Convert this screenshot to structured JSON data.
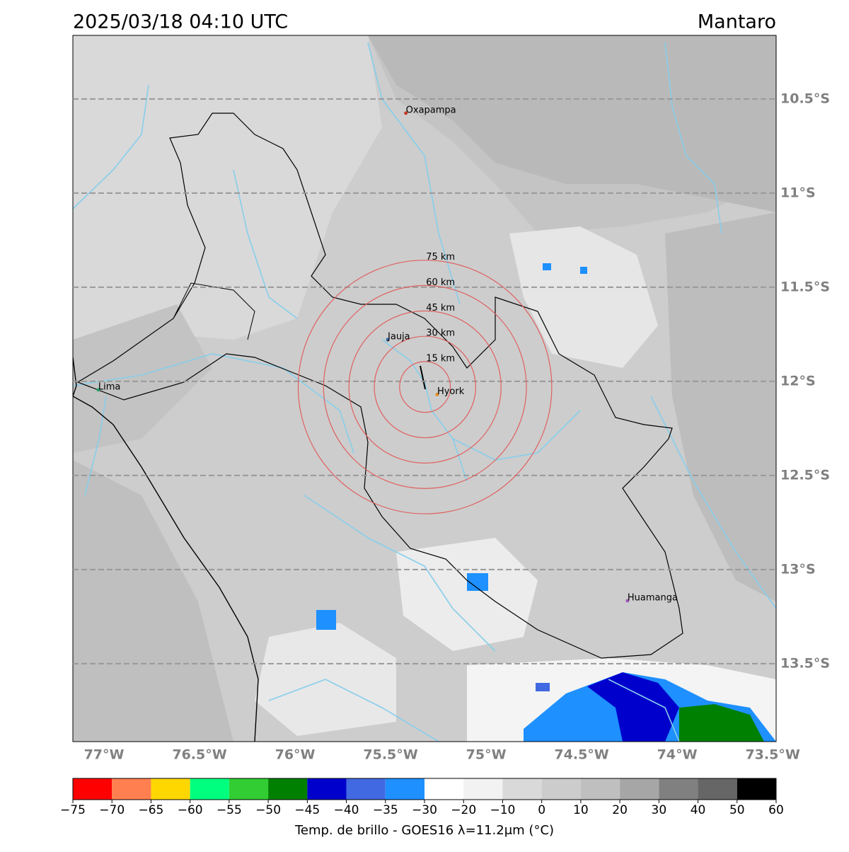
{
  "header": {
    "title": "2025/03/18 04:10 UTC",
    "region": "Mantaro"
  },
  "map": {
    "xlim": [
      -77.163,
      -73.482
    ],
    "ylim": [
      -10.162,
      -13.914
    ],
    "xticks": [
      {
        "value": -77,
        "label": "77°W"
      },
      {
        "value": -76.5,
        "label": "76.5°W"
      },
      {
        "value": -76,
        "label": "76°W"
      },
      {
        "value": -75.5,
        "label": "75.5°W"
      },
      {
        "value": -75,
        "label": "75°W"
      },
      {
        "value": -74.5,
        "label": "74.5°W"
      },
      {
        "value": -74,
        "label": "74°W"
      },
      {
        "value": -73.5,
        "label": "73.5°W"
      }
    ],
    "yticks": [
      {
        "value": -10.5,
        "label": "10.5°S"
      },
      {
        "value": -11,
        "label": "11°S"
      },
      {
        "value": -11.5,
        "label": "11.5°S"
      },
      {
        "value": -12,
        "label": "12°S"
      },
      {
        "value": -12.5,
        "label": "12.5°S"
      },
      {
        "value": -13,
        "label": "13°S"
      },
      {
        "value": -13.5,
        "label": "13.5°S"
      }
    ],
    "grid": true,
    "places": [
      {
        "name": "Oxapampa",
        "lon": -75.42,
        "lat": -10.575,
        "color": "#c0392b"
      },
      {
        "name": "Jauja",
        "lon": -75.515,
        "lat": -11.778,
        "color": "#3a6ea5"
      },
      {
        "name": "Lima",
        "lon": -77.03,
        "lat": -12.045,
        "color": "#2e9e6e"
      },
      {
        "name": "Hyork",
        "lon": -75.256,
        "lat": -12.07,
        "color": "#e08a2a"
      },
      {
        "name": "Huamanga",
        "lon": -74.26,
        "lat": -13.166,
        "color": "#9b59b6"
      }
    ],
    "rings": {
      "center": [
        -75.32,
        -12.03
      ],
      "color": "#e06060",
      "radii": [
        {
          "value": 15,
          "label": "15 km"
        },
        {
          "value": 30,
          "label": "30 km"
        },
        {
          "value": 45,
          "label": "45 km"
        },
        {
          "value": 60,
          "label": "60 km"
        },
        {
          "value": 75,
          "label": "75 km"
        }
      ]
    }
  },
  "colorbar": {
    "label": "Temp. de brillo - GOES16 λ=11.2μm (°C)",
    "ticks": [
      {
        "value": -75,
        "label": "−75"
      },
      {
        "value": -70,
        "label": "−70"
      },
      {
        "value": -65,
        "label": "−65"
      },
      {
        "value": -60,
        "label": "−60"
      },
      {
        "value": -55,
        "label": "−55"
      },
      {
        "value": -50,
        "label": "−50"
      },
      {
        "value": -45,
        "label": "−45"
      },
      {
        "value": -40,
        "label": "−40"
      },
      {
        "value": -35,
        "label": "−35"
      },
      {
        "value": -30,
        "label": "−30"
      },
      {
        "value": -20,
        "label": "−20"
      },
      {
        "value": -10,
        "label": "−10"
      },
      0,
      10,
      20,
      30,
      40,
      50,
      60
    ],
    "colors": [
      "#ff0000",
      "#ff7f50",
      "#ffd700",
      "#00ff7f",
      "#32cd32",
      "#008000",
      "#0000cd",
      "#4169e1",
      "#1e90ff",
      "#ffffff",
      "#f2f2f2",
      "#d9d9d9",
      "#cccccc",
      "#bfbfbf",
      "#a6a6a6",
      "#808080",
      "#666666",
      "#000000"
    ]
  }
}
